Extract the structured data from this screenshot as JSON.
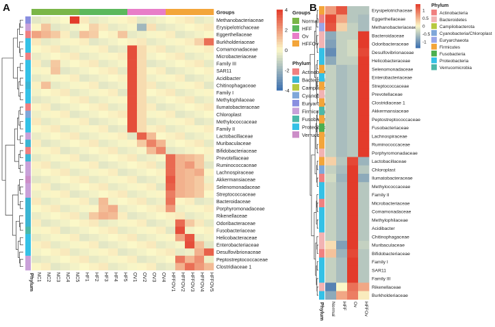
{
  "panels": {
    "a": "A",
    "b": "B"
  },
  "chart_data": [
    {
      "type": "heatmap",
      "title": "",
      "columns": [
        "NC1",
        "NC2",
        "NC3",
        "NC4",
        "NC5",
        "HF1",
        "HF2",
        "HF3",
        "HF4",
        "HF5",
        "OV1",
        "OV2",
        "OV3",
        "OV4",
        "HFFOV1",
        "HFFOV2",
        "HFFOV3",
        "HFFOV4",
        "HFFOV5"
      ],
      "column_groups": [
        "Normal",
        "Normal",
        "Normal",
        "Normal",
        "Normal",
        "HFF",
        "HFF",
        "HFF",
        "HFF",
        "HFF",
        "Ov",
        "Ov",
        "Ov",
        "Ov",
        "HFFOv",
        "HFFOv",
        "HFFOv",
        "HFFOv",
        "HFFOv"
      ],
      "rows": [
        "Methanobacteriaceae",
        "Erysipelotrichaceae",
        "Eggerthellaceae",
        "Burkholderiaceae",
        "Comamonadaceae",
        "Microbacteriaceae",
        "Family III",
        "SAR11",
        "Acidibacter",
        "Chitinophagaceae",
        "Family I",
        "Methylophilaceae",
        "Ilumatobacteraceae",
        "Chloroplast",
        "Methylococcaceae",
        "Family II",
        "Lactobacillaceae",
        "Muribaculaceae",
        "Bifidobacteriaceae",
        "Prevotellaceae",
        "Ruminococcaceae",
        "Lachnospiraceae",
        "Akkermansiaceae",
        "Selenomonadaceae",
        "Streptococcaceae",
        "Bacteroidaceae",
        "Porphyromonadaceae",
        "Rikenellaceae",
        "Odoribacteraceae",
        "Fusobacteriaceae",
        "Helicobacteraceae",
        "Enterobacteriaceae",
        "Desulfovibrionaceae",
        "Peptostreptococcaceae",
        "Clostridiaceae 1"
      ],
      "row_phylum": [
        "Euryarchaeota",
        "Firmicutes",
        "Actinobacteria",
        "Proteobacteria",
        "Proteobacteria",
        "Actinobacteria",
        "Proteobacteria",
        "Proteobacteria",
        "Proteobacteria",
        "Bacteroidetes",
        "Proteobacteria",
        "Proteobacteria",
        "Actinobacteria",
        "Cyanobacteria/Chloroplast",
        "Proteobacteria",
        "Proteobacteria",
        "Firmicutes",
        "Bacteroidetes",
        "Actinobacteria",
        "Bacteroidetes",
        "Firmicutes",
        "Firmicutes",
        "Verrucomicrobia",
        "Firmicutes",
        "Firmicutes",
        "Bacteroidetes",
        "Bacteroidetes",
        "Bacteroidetes",
        "Bacteroidetes",
        "Fusobacteria",
        "Proteobacteria",
        "Proteobacteria",
        "Proteobacteria",
        "Firmicutes",
        "Firmicutes"
      ],
      "column_annotation_title": "Groups",
      "row_annotation_title": "Phylum",
      "row_annotation_label": "Phylum",
      "legend_ticks": [
        4,
        2,
        0,
        -2,
        -4
      ],
      "value_range": [
        -4,
        4
      ]
    },
    {
      "type": "heatmap",
      "title": "",
      "columns": [
        "Normal",
        "HFF",
        "Ov",
        "HFFOv"
      ],
      "rows": [
        "Erysipelotrichaceae",
        "Eggerthellaceae",
        "Methanobacteriaceae",
        "Bacteroidaceae",
        "Odoribacteraceae",
        "Desulfovibrionaceae",
        "Helicobacteraceae",
        "Selenomonadaceae",
        "Enterobacteriaceae",
        "Streptococcaceae",
        "Prevotellaceae",
        "Clostridiaceae 1",
        "Akkermansiaceae",
        "Peptostreptococcaceae",
        "Fusobacteriaceae",
        "Lachnospiraceae",
        "Ruminococcaceae",
        "Porphyromonadaceae",
        "Lactobacillaceae",
        "Chloroplast",
        "Ilumatobacteraceae",
        "Methylococcaceae",
        "Family II",
        "Microbacteriaceae",
        "Comamonadaceae",
        "Methylophilaceae",
        "Acidibacter",
        "Chitinophagaceae",
        "Muribaculaceae",
        "Bifidobacteriaceae",
        "Family I",
        "SAR11",
        "Family III",
        "Rikenellaceae",
        "Burkholderiaceae"
      ],
      "row_phylum": [
        "Firmicutes",
        "Actinobacteria",
        "Euryarchaeota",
        "Bacteroidetes",
        "Bacteroidetes",
        "Proteobacteria",
        "Proteobacteria",
        "Firmicutes",
        "Proteobacteria",
        "Firmicutes",
        "Bacteroidetes",
        "Firmicutes",
        "Verrucomicrobia",
        "Firmicutes",
        "Fusobacteria",
        "Firmicutes",
        "Firmicutes",
        "Bacteroidetes",
        "Firmicutes",
        "Cyanobacteria/Chloroplast",
        "Actinobacteria",
        "Proteobacteria",
        "Proteobacteria",
        "Actinobacteria",
        "Proteobacteria",
        "Proteobacteria",
        "Proteobacteria",
        "Bacteroidetes",
        "Bacteroidetes",
        "Actinobacteria",
        "Proteobacteria",
        "Proteobacteria",
        "Proteobacteria",
        "Bacteroidetes",
        "Proteobacteria"
      ],
      "row_annotation_title": "Phylum",
      "row_annotation_label": "Phylum",
      "legend_ticks": [
        1,
        0.5,
        0,
        -0.5,
        -1
      ],
      "value_range": [
        -1.4,
        1.4
      ]
    }
  ],
  "groups": [
    {
      "name": "Normal",
      "color": "#7ab648"
    },
    {
      "name": "HFF",
      "color": "#5cb85c"
    },
    {
      "name": "Ov",
      "color": "#e87dc8"
    },
    {
      "name": "HFFOv",
      "color": "#f3a53a"
    }
  ],
  "phyla_a": [
    {
      "name": "Actinobacteria",
      "color": "#f08080"
    },
    {
      "name": "Bacteroidetes",
      "color": "#3bb5d3"
    },
    {
      "name": "Campilobacterota",
      "color": "#b7c93f"
    },
    {
      "name": "Cyanobacteria/Chloroplast",
      "color": "#7fa7d9"
    },
    {
      "name": "Euryarchaeota",
      "color": "#8a8fe0"
    },
    {
      "name": "Firmicutes",
      "color": "#c9a1d9"
    },
    {
      "name": "Fusobacteria",
      "color": "#4cb8a8"
    },
    {
      "name": "Proteobacteria",
      "color": "#34c1e6"
    },
    {
      "name": "Verrucomicrobia",
      "color": "#cc8ec8"
    }
  ],
  "phyla_b": [
    {
      "name": "Actinobacteria",
      "color": "#f08080"
    },
    {
      "name": "Bacteroidetes",
      "color": "#f2b3b3"
    },
    {
      "name": "Campilobacterota",
      "color": "#b7c93f"
    },
    {
      "name": "Cyanobacteria/Chloroplast",
      "color": "#7fa7d9"
    },
    {
      "name": "Euryarchaeota",
      "color": "#9aa6e8"
    },
    {
      "name": "Firmicutes",
      "color": "#f3a53a"
    },
    {
      "name": "Fusobacteria",
      "color": "#4caf50"
    },
    {
      "name": "Proteobacteria",
      "color": "#34c1e6"
    },
    {
      "name": "Verrucomicrobia",
      "color": "#4cb8a8"
    }
  ],
  "colors": {
    "high": "#e33b2b",
    "mid": "#fbf8c8",
    "low": "#3b6fb0"
  }
}
